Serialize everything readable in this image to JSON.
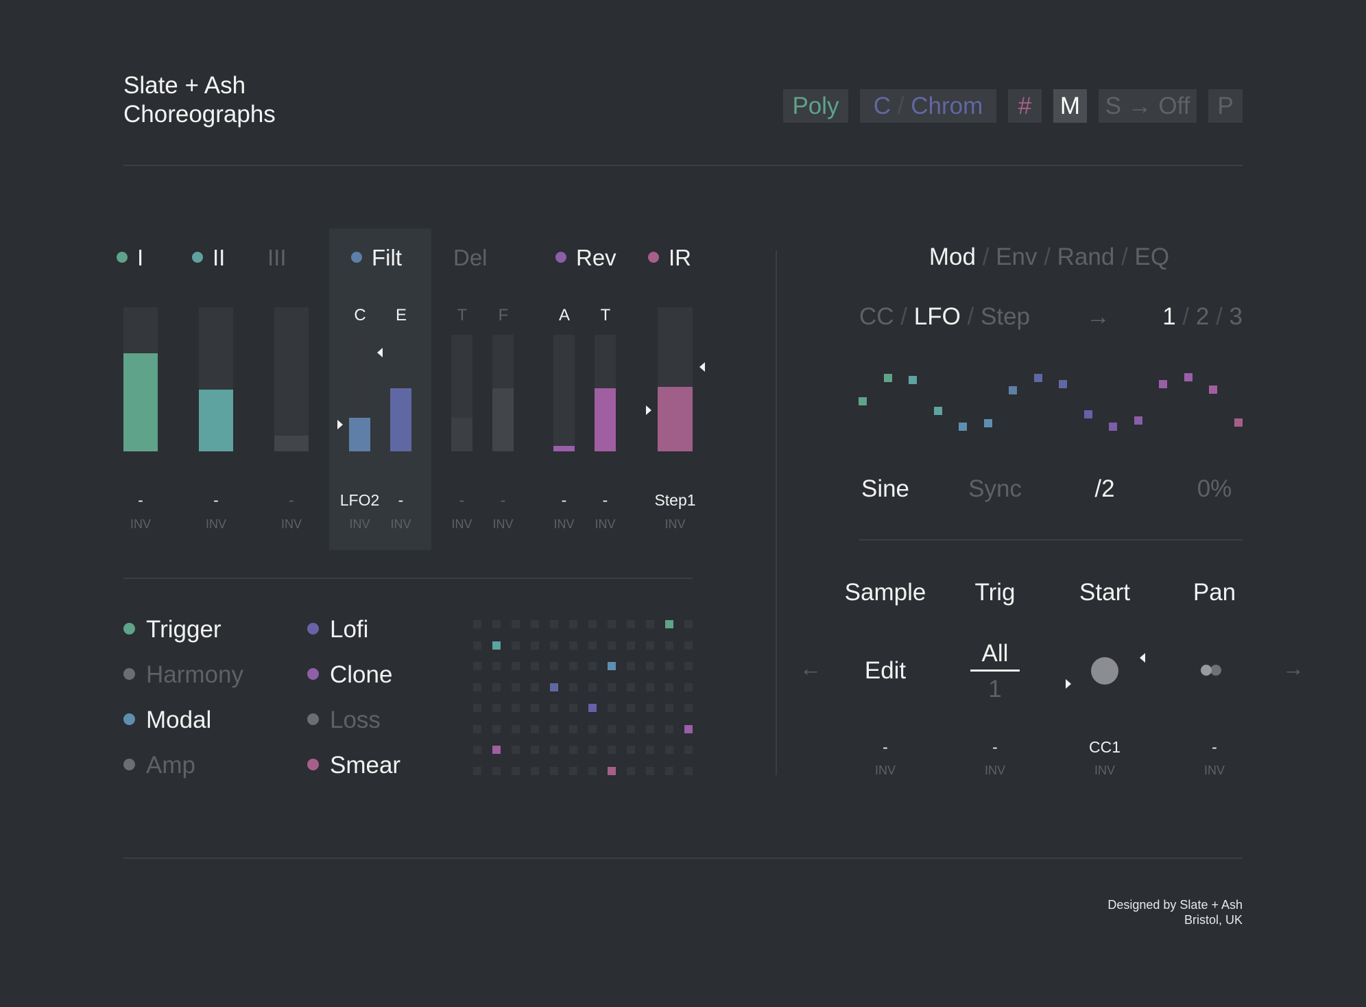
{
  "header": {
    "title_line1": "Slate + Ash",
    "title_line2": "Choreographs",
    "buttons": [
      {
        "label": "Poly",
        "color": "#5fa38a"
      },
      {
        "label": "C",
        "label2": "Chrom",
        "color": "#6068a3"
      },
      {
        "label": "#",
        "color": "#a65f8b"
      },
      {
        "label": "M",
        "color": "#ffffff",
        "active": true
      },
      {
        "label": "S → Off",
        "color": "#5e6166"
      },
      {
        "label": "P",
        "color": "#5e6166"
      }
    ]
  },
  "channels": [
    {
      "name": "I",
      "dot": "#5fa38a",
      "active": true,
      "bars": [
        {
          "fill": 0.68,
          "color": "#5fa38a",
          "value": "-",
          "inv": "INV"
        }
      ]
    },
    {
      "name": "II",
      "dot": "#5ea3a0",
      "active": true,
      "bars": [
        {
          "fill": 0.43,
          "color": "#5ea3a0",
          "value": "-",
          "inv": "INV"
        }
      ]
    },
    {
      "name": "III",
      "dot": null,
      "active": false,
      "bars": [
        {
          "fill": 0.11,
          "color": "#424549",
          "value": "-",
          "inv": "INV"
        }
      ]
    },
    {
      "name": "Filt",
      "dot": "#5f7fa8",
      "active": true,
      "selected": true,
      "bars": [
        {
          "letter": "C",
          "fill": 0.29,
          "color": "#5f7fa8",
          "value": "LFO2",
          "inv": "INV"
        },
        {
          "letter": "E",
          "fill": 0.54,
          "color": "#6068a3",
          "value": "-",
          "inv": "INV"
        }
      ]
    },
    {
      "name": "Del",
      "dot": null,
      "active": false,
      "bars": [
        {
          "letter": "T",
          "fill": 0.29,
          "color": "#3c3f43",
          "value": "-",
          "inv": "INV"
        },
        {
          "letter": "F",
          "fill": 0.54,
          "color": "#424549",
          "value": "-",
          "inv": "INV"
        }
      ]
    },
    {
      "name": "Rev",
      "dot": "#8a5fa8",
      "active": true,
      "bars": [
        {
          "letter": "A",
          "fill": 0.05,
          "color": "#9a5fa8",
          "value": "-",
          "inv": "INV"
        },
        {
          "letter": "T",
          "fill": 0.54,
          "color": "#a05fa0",
          "value": "-",
          "inv": "INV"
        }
      ]
    },
    {
      "name": "IR",
      "dot": "#a65f8b",
      "active": true,
      "bars": [
        {
          "fill": 0.45,
          "color": "#a05f88",
          "value": "Step1",
          "inv": "INV"
        }
      ]
    }
  ],
  "legend": [
    {
      "label": "Trigger",
      "dot": "#5fa38a",
      "active": true
    },
    {
      "label": "Harmony",
      "dot": "#6b6e72",
      "active": false
    },
    {
      "label": "Modal",
      "dot": "#5f8fb0",
      "active": true
    },
    {
      "label": "Amp",
      "dot": "#6b6e72",
      "active": false
    },
    {
      "label": "Lofi",
      "dot": "#6a62a8",
      "active": true
    },
    {
      "label": "Clone",
      "dot": "#8f5fa8",
      "active": true
    },
    {
      "label": "Loss",
      "dot": "#6b6e72",
      "active": false
    },
    {
      "label": "Smear",
      "dot": "#a65f8b",
      "active": true
    }
  ],
  "matrix": {
    "cols": 12,
    "rows": 8,
    "active": [
      [
        10,
        "#5fa38a"
      ],
      [
        1,
        "#5ea3a0"
      ],
      [
        7,
        "#5f8fb0"
      ],
      [
        4,
        "#6068a3"
      ],
      [
        6,
        "#6a5fa8"
      ],
      [
        11,
        "#9a5fa8"
      ],
      [
        1,
        "#a05fa0"
      ],
      [
        7,
        "#a65f8b"
      ]
    ]
  },
  "mod": {
    "tabs": [
      "Mod",
      "Env",
      "Rand",
      "EQ"
    ],
    "active_tab": 0,
    "sources": [
      "CC",
      "LFO",
      "Step"
    ],
    "active_source": 1,
    "slots": [
      "1",
      "2",
      "3"
    ],
    "active_slot": 0,
    "steps": [
      0.51,
      0.98,
      0.95,
      0.32,
      0,
      0.07,
      0.74,
      0.98,
      0.86,
      0.25,
      0,
      0.12,
      0.86,
      1.0,
      0.75,
      0.09
    ],
    "step_colors": [
      "#5fa38a",
      "#5fa38a",
      "#5ea3a0",
      "#5ea3a0",
      "#5f8fb0",
      "#5f8fb0",
      "#5f7fa8",
      "#6068a3",
      "#6068a3",
      "#6a5fa8",
      "#7a5fa8",
      "#8a5fa8",
      "#9a5fa8",
      "#9a5fa8",
      "#a05fa0",
      "#a65f8b"
    ],
    "params": [
      {
        "label": "Sine",
        "active": true
      },
      {
        "label": "Sync",
        "active": false
      },
      {
        "label": "/2",
        "active": true
      },
      {
        "label": "0%",
        "active": false
      }
    ]
  },
  "sample": {
    "headers": [
      "Sample",
      "Trig",
      "Start",
      "Pan"
    ],
    "edit": "Edit",
    "trig_top": "All",
    "trig_bottom": "1",
    "values": [
      "-",
      "-",
      "CC1",
      "-"
    ],
    "inv": [
      "INV",
      "INV",
      "INV",
      "INV"
    ]
  },
  "footer": {
    "line1": "Designed by Slate + Ash",
    "line2": "Bristol, UK"
  }
}
